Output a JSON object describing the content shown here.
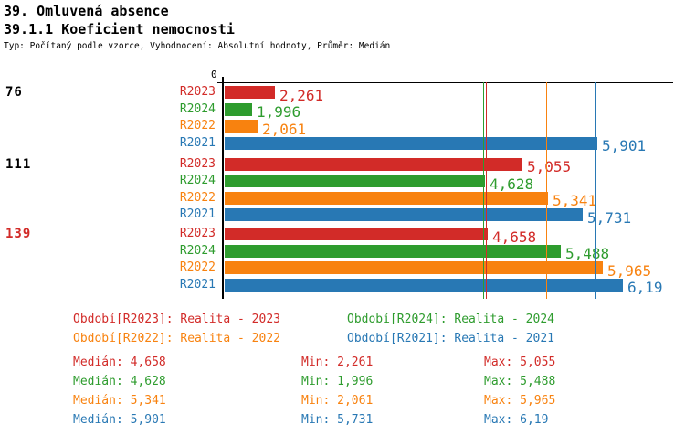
{
  "header": {
    "title1": "39. Omluvená absence",
    "title2": "39.1.1 Koeficient nemocnosti",
    "subtitle": "Typ: Počítaný podle vzorce, Vyhodnocení: Absolutní hodnoty, Průměr: Medián"
  },
  "colors": {
    "R2023": "#d22b28",
    "R2024": "#2e9c2e",
    "R2022": "#f8820f",
    "R2021": "#2878b4",
    "axis": "#000000",
    "highlight_group_label": "#d22b28",
    "normal_group_label": "#000000"
  },
  "chart_data": {
    "type": "bar",
    "orientation": "horizontal",
    "axis_zero_label": "0",
    "series_order": [
      "R2023",
      "R2024",
      "R2022",
      "R2021"
    ],
    "groups": [
      {
        "label": "76",
        "label_color": "#000000",
        "bars": [
          {
            "series": "R2023",
            "value": 2.261,
            "value_label": "2,261"
          },
          {
            "series": "R2024",
            "value": 1.996,
            "value_label": "1,996"
          },
          {
            "series": "R2022",
            "value": 2.061,
            "value_label": "2,061"
          },
          {
            "series": "R2021",
            "value": 5.901,
            "value_label": "5,901"
          }
        ]
      },
      {
        "label": "111",
        "label_color": "#000000",
        "bars": [
          {
            "series": "R2023",
            "value": 5.055,
            "value_label": "5,055"
          },
          {
            "series": "R2024",
            "value": 4.628,
            "value_label": "4,628"
          },
          {
            "series": "R2022",
            "value": 5.341,
            "value_label": "5,341"
          },
          {
            "series": "R2021",
            "value": 5.731,
            "value_label": "5,731"
          }
        ]
      },
      {
        "label": "139",
        "label_color": "#d22b28",
        "bars": [
          {
            "series": "R2023",
            "value": 4.658,
            "value_label": "4,658"
          },
          {
            "series": "R2024",
            "value": 5.488,
            "value_label": "5,488"
          },
          {
            "series": "R2022",
            "value": 5.965,
            "value_label": "5,965"
          },
          {
            "series": "R2021",
            "value": 6.19,
            "value_label": "6,19"
          }
        ]
      }
    ],
    "reference_lines": [
      {
        "series": "R2024",
        "value": 4.628,
        "meaning": "median"
      },
      {
        "series": "R2023",
        "value": 4.658,
        "meaning": "median"
      },
      {
        "series": "R2022",
        "value": 5.341,
        "meaning": "median"
      },
      {
        "series": "R2021",
        "value": 5.901,
        "meaning": "median"
      }
    ]
  },
  "legend": {
    "items": [
      {
        "series": "R2023",
        "text": "Období[R2023]: Realita - 2023"
      },
      {
        "series": "R2024",
        "text": "Období[R2024]: Realita - 2024"
      },
      {
        "series": "R2022",
        "text": "Období[R2022]: Realita - 2022"
      },
      {
        "series": "R2021",
        "text": "Období[R2021]: Realita - 2021"
      }
    ]
  },
  "stats": {
    "rows": [
      {
        "series": "R2023",
        "median": "Medián: 4,658",
        "min": "Min: 2,261",
        "max": "Max: 5,055"
      },
      {
        "series": "R2024",
        "median": "Medián: 4,628",
        "min": "Min: 1,996",
        "max": "Max: 5,488"
      },
      {
        "series": "R2022",
        "median": "Medián: 5,341",
        "min": "Min: 2,061",
        "max": "Max: 5,965"
      },
      {
        "series": "R2021",
        "median": "Medián: 5,901",
        "min": "Min: 5,731",
        "max": "Max: 6,19"
      }
    ]
  }
}
